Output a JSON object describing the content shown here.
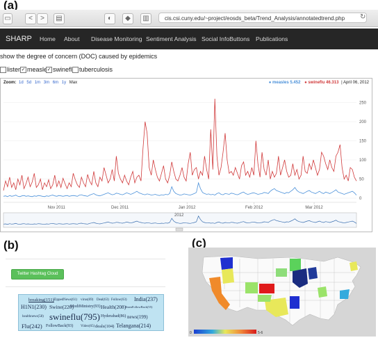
{
  "panels": {
    "a": "(a)",
    "b": "(b)",
    "c": "(c)"
  },
  "browser": {
    "back": "<",
    "forward": ">",
    "url": "cis.csi.cuny.edu/~project/eosds_beta/Trend_Analysis/annotatedtrend.php",
    "reload": "↻"
  },
  "navbar": {
    "brand": "SHARP",
    "items": [
      "Home",
      "About",
      "Disease Monitoring",
      "Sentiment Analysis",
      "Social InfoButtons",
      "Publications"
    ]
  },
  "heading": "show the degree of concern (DOC) caused by epidemics",
  "checkboxes": [
    {
      "label": "listeria",
      "checked": false
    },
    {
      "label": "measles",
      "checked": true
    },
    {
      "label": "swineflu",
      "checked": true
    },
    {
      "label": "tuberculosis",
      "checked": false
    }
  ],
  "zoom": {
    "label": "Zoom:",
    "options": [
      "1d",
      "5d",
      "1m",
      "3m",
      "6m",
      "1y",
      "Max"
    ]
  },
  "legend": {
    "measles": "● measles 5.452",
    "swineflu": "● swineflu 46.313",
    "date": "| April 06, 2012"
  },
  "colors": {
    "measles": "#4a90d9",
    "swineflu": "#d0393a",
    "navbar": "#262626",
    "button": "#5bc05b"
  },
  "chart_data": {
    "type": "line",
    "yticks": [
      "250",
      "200",
      "150",
      "100",
      "50",
      "0"
    ],
    "ylim": [
      0,
      280
    ],
    "xticks": [
      "Nov 2011",
      "Dec 2011",
      "Jan 2012",
      "Feb 2012",
      "Mar 2012"
    ],
    "navigator_label": "2012",
    "series": [
      {
        "name": "swineflu",
        "values": [
          20,
          45,
          30,
          55,
          28,
          40,
          22,
          50,
          35,
          60,
          25,
          38,
          55,
          30,
          42,
          65,
          28,
          35,
          50,
          22,
          40,
          30,
          48,
          25,
          35,
          60,
          30,
          45,
          28,
          52,
          38,
          25,
          40,
          30,
          65,
          48,
          35,
          28,
          55,
          40,
          30,
          62,
          45,
          35,
          70,
          40,
          30,
          55,
          45,
          80,
          60,
          40,
          50,
          75,
          45,
          110,
          65,
          50,
          40,
          60,
          45,
          35,
          55,
          70,
          40,
          55,
          60,
          45,
          130,
          200,
          170,
          80,
          60,
          100,
          75,
          55,
          45,
          65,
          85,
          50,
          40,
          60,
          95,
          70,
          50,
          45,
          60,
          80,
          55,
          45,
          90,
          120,
          60,
          75,
          80,
          50,
          70,
          60,
          110,
          75,
          50,
          180,
          75,
          260,
          110,
          60,
          80,
          120,
          170,
          100,
          65,
          70,
          60,
          80,
          65,
          50,
          85,
          95,
          60,
          70,
          55,
          80,
          60,
          150,
          90,
          55,
          120,
          75,
          60,
          100,
          50,
          70,
          55,
          65,
          110,
          60,
          80,
          100,
          70,
          55,
          60,
          90,
          60,
          75,
          50,
          60,
          110,
          70,
          65,
          90,
          75,
          100,
          80,
          60,
          75,
          120,
          110,
          90,
          75,
          100,
          80,
          70,
          110,
          120,
          140,
          80,
          50,
          60,
          45,
          80,
          75,
          55,
          45
        ]
      },
      {
        "name": "measles",
        "values": [
          5,
          6,
          4,
          7,
          5,
          6,
          8,
          5,
          4,
          6,
          7,
          5,
          6,
          5,
          4,
          6,
          5,
          7,
          6,
          5,
          4,
          6,
          5,
          7,
          8,
          6,
          5,
          7,
          6,
          5,
          6,
          7,
          5,
          6,
          7,
          6,
          5,
          8,
          9,
          7,
          6,
          5,
          8,
          10,
          12,
          9,
          7,
          6,
          8,
          10,
          12,
          14,
          11,
          9,
          10,
          13,
          12,
          10,
          9,
          11,
          14,
          12,
          10,
          12,
          15,
          18,
          14,
          12,
          10,
          9,
          11,
          10,
          8,
          9,
          10,
          8,
          7,
          9,
          8,
          10,
          9,
          12,
          30,
          18,
          12,
          10,
          8,
          9,
          11,
          10,
          9,
          8,
          10,
          12,
          15,
          40,
          25,
          15,
          12,
          10,
          11,
          9,
          10,
          8,
          12,
          14,
          10,
          9,
          12,
          11,
          10,
          13,
          12,
          10,
          9,
          11,
          14,
          16,
          12,
          10,
          11,
          13,
          14,
          12,
          10,
          11,
          12,
          15,
          14,
          12,
          18,
          22,
          25,
          20,
          18,
          16,
          14,
          12,
          15,
          14,
          18,
          22,
          28,
          20,
          16,
          14,
          12,
          15,
          18,
          20,
          16,
          14,
          12,
          15,
          18,
          14,
          12,
          16,
          14,
          12,
          15,
          18,
          22,
          16,
          14,
          12,
          10,
          12,
          14,
          16,
          18,
          14,
          8
        ]
      }
    ]
  },
  "twitter": {
    "button": "Twitter Hashtag Cloud",
    "tags": [
      {
        "text": "breaking(151)",
        "size": 6.5,
        "underline": true
      },
      {
        "text": "ZippedNews(61)",
        "size": 5
      },
      {
        "text": "virus(69)",
        "size": 5
      },
      {
        "text": "Deal(63)",
        "size": 5
      },
      {
        "text": "Follow(63)",
        "size": 5
      },
      {
        "text": "India(237)",
        "size": 8
      },
      {
        "text": "H1N1(230)",
        "size": 8
      },
      {
        "text": "Swine(220)",
        "size": 7.5
      },
      {
        "text": "ModiMinistry(93)",
        "size": 6
      },
      {
        "text": "Health(208)",
        "size": 7.5
      },
      {
        "text": "TeamFollowBack(55)",
        "size": 4.5
      },
      {
        "text": "healthnews(58)",
        "size": 5
      },
      {
        "text": "swineflu(795)",
        "size": 13
      },
      {
        "text": "Hyderabad(86)",
        "size": 6
      },
      {
        "text": "news(199)",
        "size": 7
      },
      {
        "text": "Flu(242)",
        "size": 8.5
      },
      {
        "text": "FollowBack(93)",
        "size": 6
      },
      {
        "text": "Video(65)",
        "size": 5
      },
      {
        "text": "deals(104)",
        "size": 6.5
      },
      {
        "text": "Telangana(214)",
        "size": 8
      }
    ]
  },
  "map": {
    "legend_min": "0",
    "legend_max": "5-6"
  }
}
